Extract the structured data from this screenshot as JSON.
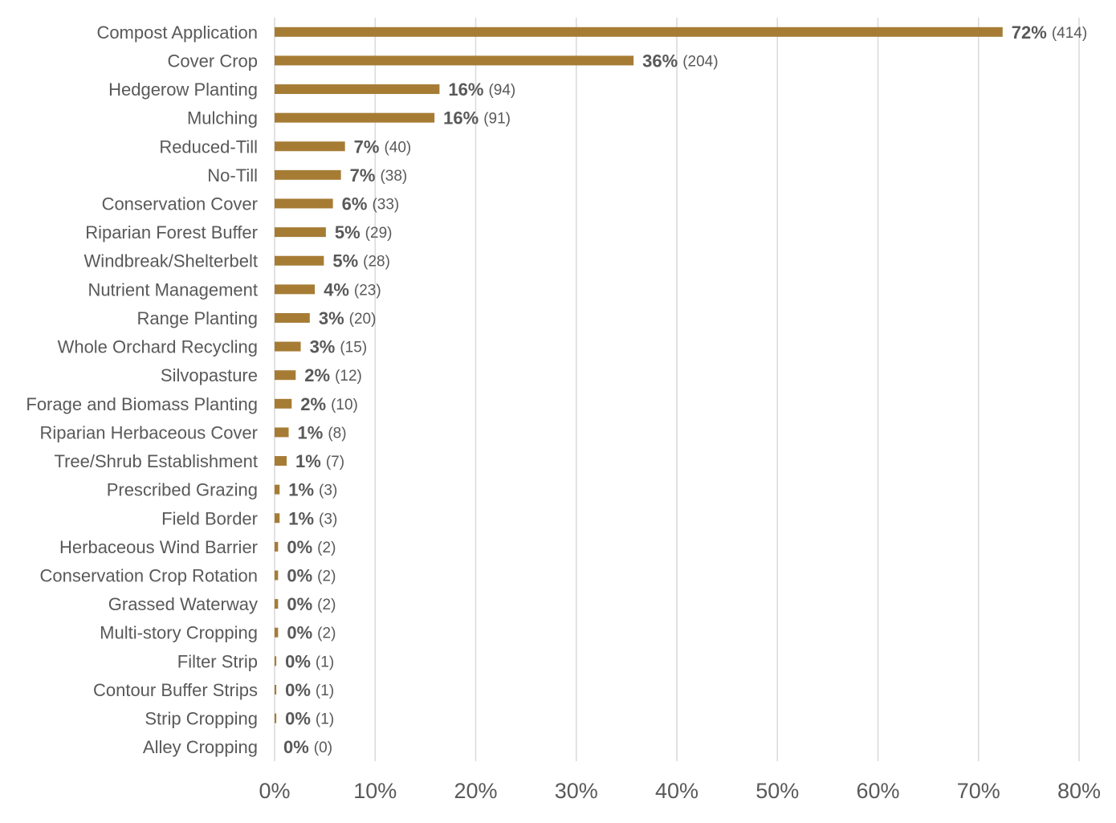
{
  "chart_data": {
    "type": "bar",
    "orientation": "horizontal",
    "title": "",
    "xlabel": "",
    "ylabel": "",
    "xlim": [
      0,
      80
    ],
    "x_ticks": [
      "0%",
      "10%",
      "20%",
      "30%",
      "40%",
      "50%",
      "60%",
      "70%",
      "80%"
    ],
    "bar_color": "#A67C35",
    "grid": true,
    "categories": [
      "Compost Application",
      "Cover Crop",
      "Hedgerow Planting",
      "Mulching",
      "Reduced-Till",
      "No-Till",
      "Conservation Cover",
      "Riparian Forest Buffer",
      "Windbreak/Shelterbelt",
      "Nutrient Management",
      "Range Planting",
      "Whole Orchard Recycling",
      "Silvopasture",
      "Forage and Biomass Planting",
      "Riparian Herbaceous Cover",
      "Tree/Shrub Establishment",
      "Prescribed Grazing",
      "Field Border",
      "Herbaceous Wind Barrier",
      "Conservation Crop Rotation",
      "Grassed Waterway",
      "Multi-story Cropping",
      "Filter Strip",
      "Contour Buffer Strips",
      "Strip Cropping",
      "Alley Cropping"
    ],
    "values": [
      72.4,
      35.7,
      16.4,
      15.9,
      7.0,
      6.6,
      5.8,
      5.1,
      4.9,
      4.0,
      3.5,
      2.6,
      2.1,
      1.7,
      1.4,
      1.2,
      0.5,
      0.5,
      0.35,
      0.35,
      0.35,
      0.35,
      0.17,
      0.17,
      0.17,
      0.0
    ],
    "percent_labels": [
      "72%",
      "36%",
      "16%",
      "16%",
      "7%",
      "7%",
      "6%",
      "5%",
      "5%",
      "4%",
      "3%",
      "3%",
      "2%",
      "2%",
      "1%",
      "1%",
      "1%",
      "1%",
      "0%",
      "0%",
      "0%",
      "0%",
      "0%",
      "0%",
      "0%",
      "0%"
    ],
    "count_labels": [
      "(414)",
      "(204)",
      "(94)",
      "(91)",
      "(40)",
      "(38)",
      "(33)",
      "(29)",
      "(28)",
      "(23)",
      "(20)",
      "(15)",
      "(12)",
      "(10)",
      "(8)",
      "(7)",
      "(3)",
      "(3)",
      "(2)",
      "(2)",
      "(2)",
      "(2)",
      "(1)",
      "(1)",
      "(1)",
      "(0)"
    ]
  }
}
